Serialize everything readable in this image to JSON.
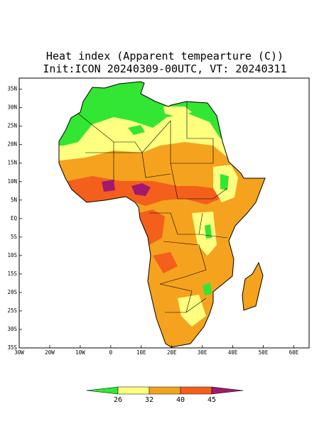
{
  "title": "Heat index (Apparent tempearture (C))",
  "subtitle": "Init:ICON 20240309-00UTC, VT: 20240311",
  "map": {
    "xlim": [
      -30,
      65
    ],
    "ylim": [
      -35,
      38
    ],
    "xticks": [
      {
        "value": -30,
        "label": "30W"
      },
      {
        "value": -20,
        "label": "20W"
      },
      {
        "value": -10,
        "label": "10W"
      },
      0,
      {
        "value": 10,
        "label": "10E"
      },
      {
        "value": 20,
        "label": "20E"
      },
      {
        "value": 30,
        "label": "30E"
      },
      {
        "value": 40,
        "label": "40E"
      },
      {
        "value": 50,
        "label": "50E"
      },
      {
        "value": 60,
        "label": "60E"
      }
    ],
    "yticks": [
      {
        "value": 35,
        "label": "35N"
      },
      {
        "value": 30,
        "label": "30N"
      },
      {
        "value": 25,
        "label": "25N"
      },
      {
        "value": 20,
        "label": "20N"
      },
      {
        "value": 15,
        "label": "15N"
      },
      {
        "value": 10,
        "label": "10N"
      },
      {
        "value": 5,
        "label": "5N"
      },
      {
        "value": 0,
        "label": "EQ"
      },
      {
        "value": -5,
        "label": "5S"
      },
      {
        "value": -10,
        "label": "10S"
      },
      {
        "value": -15,
        "label": "15S"
      },
      {
        "value": -20,
        "label": "20S"
      },
      {
        "value": -25,
        "label": "25S"
      },
      {
        "value": -30,
        "label": "30S"
      },
      {
        "value": -35,
        "label": "35S"
      }
    ]
  },
  "colorbar": {
    "levels": [
      26,
      32,
      40,
      45
    ],
    "colors": [
      "#33e633",
      "#ffff80",
      "#f5a31e",
      "#f45f1c",
      "#a2186e"
    ]
  }
}
